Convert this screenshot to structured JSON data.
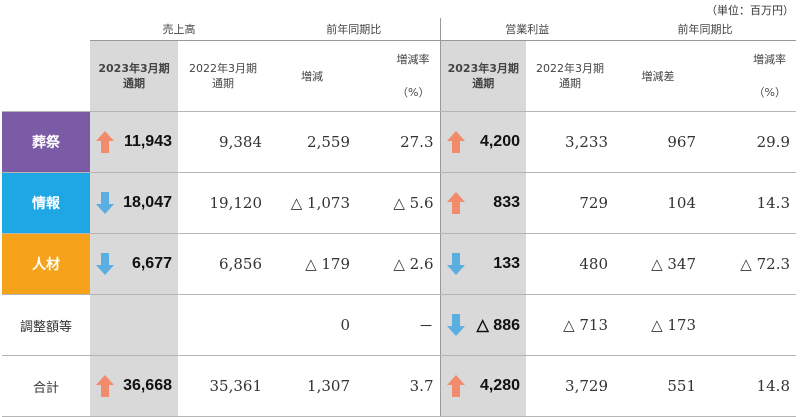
{
  "unit": "（単位：百万円）",
  "colors": {
    "funeral": "#7b5aa6",
    "info": "#1ea7e4",
    "hr": "#f7a21b",
    "up": "#f28b6b",
    "down": "#5aaee0",
    "highlight": "#d9d9d9"
  },
  "headers": {
    "sales": "売上高",
    "yoy1": "前年同期比",
    "op": "営業利益",
    "yoy2": "前年同期比",
    "cur1": [
      "2023年3月期",
      "通期"
    ],
    "prev1": [
      "2022年3月期",
      "通期"
    ],
    "change": "増減",
    "rate1": [
      "増減率",
      "（%）"
    ],
    "cur2": [
      "2023年3月期",
      "通期"
    ],
    "prev2": [
      "2022年3月期",
      "通期"
    ],
    "diff": "増減差",
    "rate2": [
      "増減率",
      "（%）"
    ]
  },
  "rows": [
    {
      "label": "葬祭",
      "sales_arrow": "up-arrow",
      "sales": "11,943",
      "prev_sales": "9,384",
      "change": "2,559",
      "rate": "27.3",
      "op_arrow": "up-arrow",
      "op": "4,200",
      "prev_op": "3,233",
      "diff": "967",
      "rate2": "29.9"
    },
    {
      "label": "情報",
      "sales_arrow": "down-arrow",
      "sales": "18,047",
      "prev_sales": "19,120",
      "change": "△ 1,073",
      "rate": "△ 5.6",
      "op_arrow": "up-arrow",
      "op": "833",
      "prev_op": "729",
      "diff": "104",
      "rate2": "14.3"
    },
    {
      "label": "人材",
      "sales_arrow": "down-arrow",
      "sales": "6,677",
      "prev_sales": "6,856",
      "change": "△ 179",
      "rate": "△ 2.6",
      "op_arrow": "down-arrow",
      "op": "133",
      "prev_op": "480",
      "diff": "△ 347",
      "rate2": "△ 72.3"
    },
    {
      "label": "調整額等",
      "sales_arrow": "",
      "sales": "",
      "prev_sales": "",
      "change": "0",
      "rate": "－",
      "op_arrow": "down-arrow",
      "op": "△ 886",
      "prev_op": "△ 713",
      "diff": "△ 173",
      "rate2": ""
    },
    {
      "label": "合計",
      "sales_arrow": "up-arrow",
      "sales": "36,668",
      "prev_sales": "35,361",
      "change": "1,307",
      "rate": "3.7",
      "op_arrow": "up-arrow",
      "op": "4,280",
      "prev_op": "3,729",
      "diff": "551",
      "rate2": "14.8"
    }
  ]
}
